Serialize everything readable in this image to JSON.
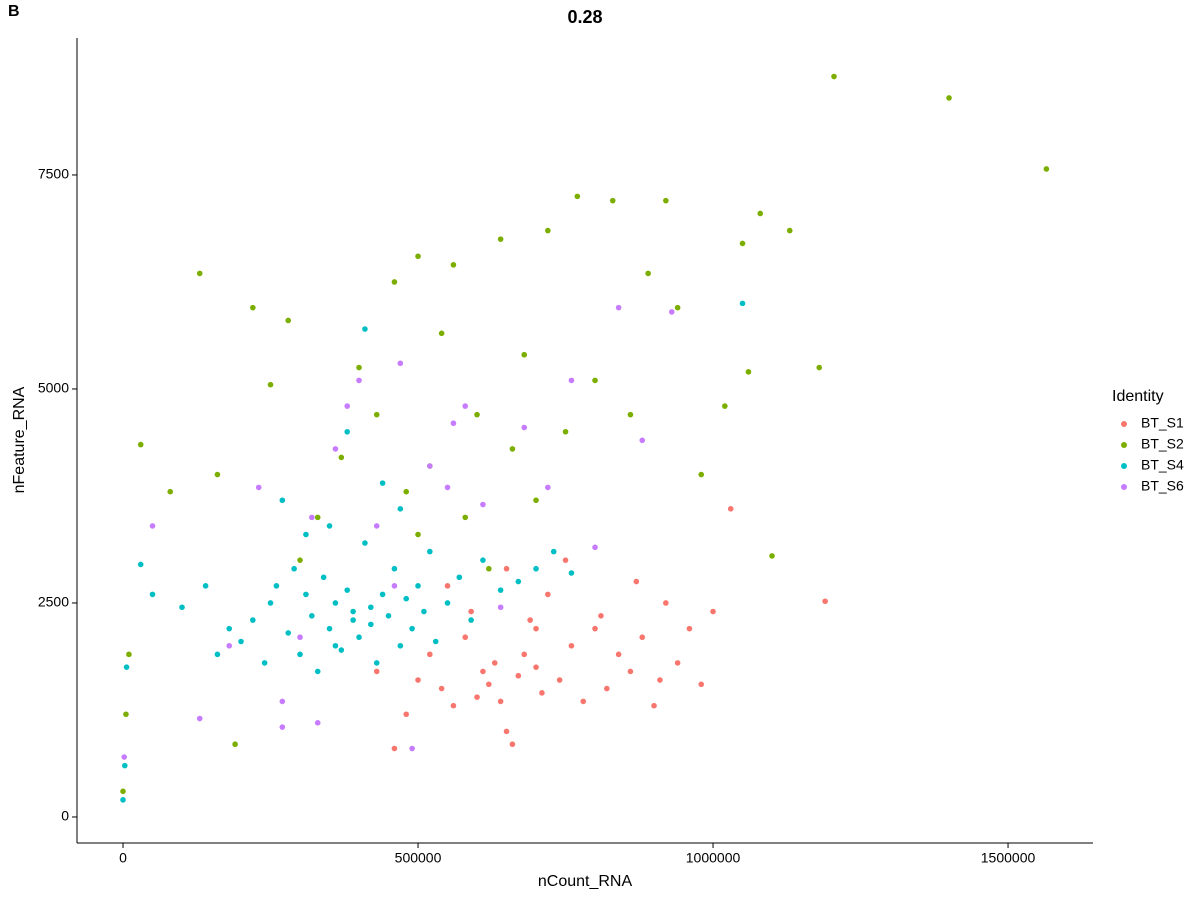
{
  "chart_data": {
    "type": "scatter",
    "tag": "B",
    "title": "0.28",
    "x_label": "nCount_RNA",
    "y_label": "nFeature_RNA",
    "legend_title": "Identity",
    "legend_position": "right",
    "grid": false,
    "xlim": [
      -78000,
      1644000
    ],
    "ylim": [
      -304,
      9100
    ],
    "xticks": [
      0,
      500000,
      1000000,
      1500000
    ],
    "yticks": [
      0,
      2500,
      5000,
      7500
    ],
    "series": [
      {
        "name": "BT_S1",
        "color": "#F8766D",
        "x": [
          460000,
          480000,
          500000,
          520000,
          540000,
          560000,
          580000,
          600000,
          610000,
          620000,
          630000,
          640000,
          650000,
          660000,
          670000,
          680000,
          690000,
          700000,
          710000,
          720000,
          740000,
          760000,
          780000,
          800000,
          820000,
          840000,
          860000,
          880000,
          900000,
          920000,
          940000,
          960000,
          980000,
          1000000,
          1030000,
          1190000,
          430000,
          550000,
          590000,
          650000,
          700000,
          750000,
          810000,
          870000,
          910000
        ],
        "y": [
          800,
          1200,
          1600,
          1900,
          1500,
          1300,
          2100,
          1400,
          1700,
          1550,
          1800,
          1350,
          1000,
          850,
          1650,
          1900,
          2300,
          1750,
          1450,
          2600,
          1600,
          2000,
          1350,
          2200,
          1500,
          1900,
          1700,
          2100,
          1300,
          2500,
          1800,
          2200,
          1550,
          2400,
          3600,
          2520,
          1700,
          2700,
          2400,
          2900,
          2200,
          3000,
          2350,
          2750,
          1600
        ]
      },
      {
        "name": "BT_S2",
        "color": "#7CAE00",
        "x": [
          0,
          5000,
          10000,
          30000,
          80000,
          130000,
          160000,
          190000,
          220000,
          250000,
          280000,
          300000,
          330000,
          370000,
          400000,
          430000,
          460000,
          480000,
          500000,
          520000,
          540000,
          560000,
          580000,
          600000,
          620000,
          640000,
          660000,
          680000,
          700000,
          720000,
          750000,
          770000,
          800000,
          830000,
          860000,
          890000,
          920000,
          940000,
          980000,
          1020000,
          1050000,
          1060000,
          1080000,
          1100000,
          1130000,
          1180000,
          1205000,
          1400000,
          1565000,
          500000
        ],
        "y": [
          300,
          1200,
          1900,
          4350,
          3800,
          6350,
          4000,
          850,
          5950,
          5050,
          5800,
          3000,
          3500,
          4200,
          5250,
          4700,
          6250,
          3800,
          6550,
          4100,
          5650,
          6450,
          3500,
          4700,
          2900,
          6750,
          4300,
          5400,
          3700,
          6850,
          4500,
          7250,
          5100,
          7200,
          4700,
          6350,
          7200,
          5950,
          4000,
          4800,
          6700,
          5200,
          7050,
          3050,
          6850,
          5250,
          8650,
          8400,
          7570,
          3300
        ]
      },
      {
        "name": "BT_S4",
        "color": "#00BFC4",
        "x": [
          0,
          3000,
          6000,
          30000,
          50000,
          100000,
          140000,
          160000,
          180000,
          200000,
          220000,
          240000,
          250000,
          260000,
          280000,
          290000,
          300000,
          310000,
          320000,
          330000,
          340000,
          350000,
          360000,
          370000,
          380000,
          390000,
          400000,
          410000,
          420000,
          430000,
          440000,
          450000,
          460000,
          470000,
          480000,
          490000,
          500000,
          510000,
          520000,
          530000,
          550000,
          570000,
          590000,
          610000,
          640000,
          670000,
          700000,
          730000,
          760000,
          1050000,
          270000,
          310000,
          350000,
          380000,
          410000,
          440000,
          470000,
          360000,
          420000,
          390000
        ],
        "y": [
          200,
          600,
          1750,
          2950,
          2600,
          2450,
          2700,
          1900,
          2200,
          2050,
          2300,
          1800,
          2500,
          2700,
          2150,
          2900,
          1900,
          2600,
          2350,
          1700,
          2800,
          2200,
          2500,
          1950,
          2650,
          2300,
          2100,
          3200,
          2450,
          1800,
          2600,
          2350,
          2900,
          2000,
          2550,
          2200,
          2700,
          2400,
          3100,
          2050,
          2500,
          2800,
          2300,
          3000,
          2650,
          2750,
          2900,
          3100,
          2850,
          6000,
          3700,
          3300,
          3400,
          4500,
          5700,
          3900,
          3600,
          2000,
          2250,
          2400
        ]
      },
      {
        "name": "BT_S6",
        "color": "#C77CFF",
        "x": [
          2000,
          50000,
          130000,
          180000,
          230000,
          270000,
          300000,
          330000,
          360000,
          400000,
          430000,
          460000,
          490000,
          520000,
          550000,
          580000,
          610000,
          640000,
          680000,
          720000,
          760000,
          800000,
          840000,
          880000,
          930000,
          320000,
          470000,
          380000,
          560000,
          270000
        ],
        "y": [
          700,
          3400,
          1150,
          2000,
          3850,
          1050,
          2100,
          1100,
          4300,
          5100,
          3400,
          2700,
          800,
          4100,
          3850,
          4800,
          3650,
          2450,
          4550,
          3850,
          5100,
          3150,
          5950,
          4400,
          5900,
          3500,
          5300,
          4800,
          4600,
          1350
        ]
      }
    ]
  }
}
